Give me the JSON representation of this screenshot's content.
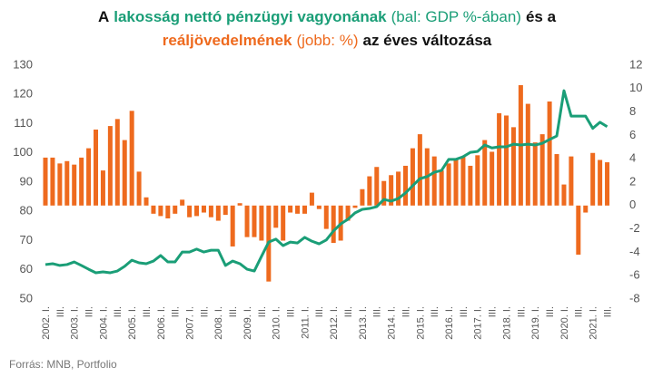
{
  "chart_data": {
    "type": "bar_line",
    "title": [
      [
        {
          "text": "A",
          "color": "#111111",
          "bold": true
        },
        {
          "text": "lakosság nettó pénzügyi vagyonának",
          "color": "#1a9e77",
          "bold": true
        },
        {
          "text": "(bal: GDP %-ában)",
          "color": "#1a9e77",
          "bold": false
        },
        {
          "text": "és a",
          "color": "#111111",
          "bold": true
        }
      ],
      [
        {
          "text": "reáljövedelmének",
          "color": "#ee6a1e",
          "bold": true
        },
        {
          "text": "(jobb: %)",
          "color": "#ee6a1e",
          "bold": false
        },
        {
          "text": "az éves változása",
          "color": "#111111",
          "bold": true
        }
      ]
    ],
    "source": "Forrás: MNB, Portfolio",
    "categories": [
      "2002. I.",
      null,
      "III.",
      null,
      "2003. I.",
      null,
      "III.",
      null,
      "2004. I.",
      null,
      "III.",
      null,
      "2005. I.",
      null,
      "III.",
      null,
      "2006. I.",
      null,
      "III.",
      null,
      "2007. I.",
      null,
      "III.",
      null,
      "2008. I.",
      null,
      "III.",
      null,
      "2009. I.",
      null,
      "III.",
      null,
      "2010. I.",
      null,
      "III.",
      null,
      "2011. I.",
      null,
      "III.",
      null,
      "2012. I.",
      null,
      "III.",
      null,
      "2013. I.",
      null,
      "III.",
      null,
      "2014. I.",
      null,
      "III.",
      null,
      "2015. I.",
      null,
      "III.",
      null,
      "2016. I.",
      null,
      "III.",
      null,
      "2017. I.",
      null,
      "III.",
      null,
      "2018. I.",
      null,
      "III.",
      null,
      "2019. I.",
      null,
      "III.",
      null,
      "2020. I.",
      null,
      "III.",
      null,
      "2021. I.",
      null,
      "III."
    ],
    "series": [
      {
        "name": "reáljövedelmének",
        "type": "bar",
        "axis": "y2",
        "color": "#ee6a1e",
        "values": [
          4.1,
          4.1,
          3.6,
          3.8,
          3.5,
          4.1,
          4.9,
          6.5,
          3.0,
          6.8,
          7.4,
          5.6,
          8.1,
          2.9,
          0.7,
          -0.7,
          -0.9,
          -1.1,
          -0.7,
          0.5,
          -1.0,
          -0.9,
          -0.6,
          -1.0,
          -1.3,
          -0.8,
          -3.5,
          0.2,
          -2.7,
          -2.7,
          -3.0,
          -6.5,
          -1.9,
          -3.0,
          -0.6,
          -0.7,
          -0.7,
          1.1,
          -0.3,
          -2.0,
          -3.2,
          -3.0,
          -1.3,
          -0.2,
          1.4,
          2.5,
          3.3,
          2.1,
          2.6,
          2.9,
          3.4,
          4.9,
          6.1,
          4.9,
          4.2,
          3.0,
          3.6,
          3.9,
          4.2,
          3.4,
          4.3,
          5.6,
          4.6,
          7.9,
          7.7,
          6.7,
          10.3,
          8.7,
          5.4,
          6.1,
          8.9,
          4.4,
          1.8,
          4.2,
          -4.2,
          -0.6,
          4.5,
          3.9,
          3.7
        ]
      },
      {
        "name": "lakosság nettó pénzügyi vagyonának",
        "type": "line",
        "axis": "y",
        "color": "#1a9e77",
        "values": [
          61.8,
          62.1,
          61.5,
          61.8,
          62.7,
          61.5,
          60.2,
          59.0,
          59.3,
          59.0,
          59.6,
          61.2,
          63.3,
          62.4,
          62.1,
          63.0,
          64.9,
          62.7,
          62.7,
          66.1,
          66.1,
          67.1,
          66.1,
          66.7,
          66.7,
          61.5,
          63.0,
          62.1,
          60.2,
          59.6,
          64.6,
          69.5,
          70.5,
          68.3,
          69.5,
          69.2,
          71.1,
          69.8,
          68.9,
          70.2,
          73.3,
          75.7,
          77.3,
          79.5,
          80.7,
          81.0,
          81.6,
          84.1,
          83.5,
          84.4,
          86.3,
          88.8,
          91.2,
          91.9,
          93.4,
          94.0,
          97.8,
          97.8,
          98.7,
          100.2,
          100.5,
          102.7,
          101.7,
          102.1,
          102.1,
          103.0,
          102.7,
          103.0,
          102.7,
          103.3,
          104.6,
          105.8,
          121.3,
          112.6,
          112.6,
          112.6,
          108.4,
          110.5,
          109.0
        ]
      }
    ],
    "ylim": [
      50,
      130
    ],
    "yticks": [
      50,
      60,
      70,
      80,
      90,
      100,
      110,
      120,
      130
    ],
    "y2lim": [
      -8,
      12
    ],
    "y2ticks": [
      -8,
      -6,
      -4,
      -2,
      0,
      2,
      4,
      6,
      8,
      10,
      12
    ]
  }
}
